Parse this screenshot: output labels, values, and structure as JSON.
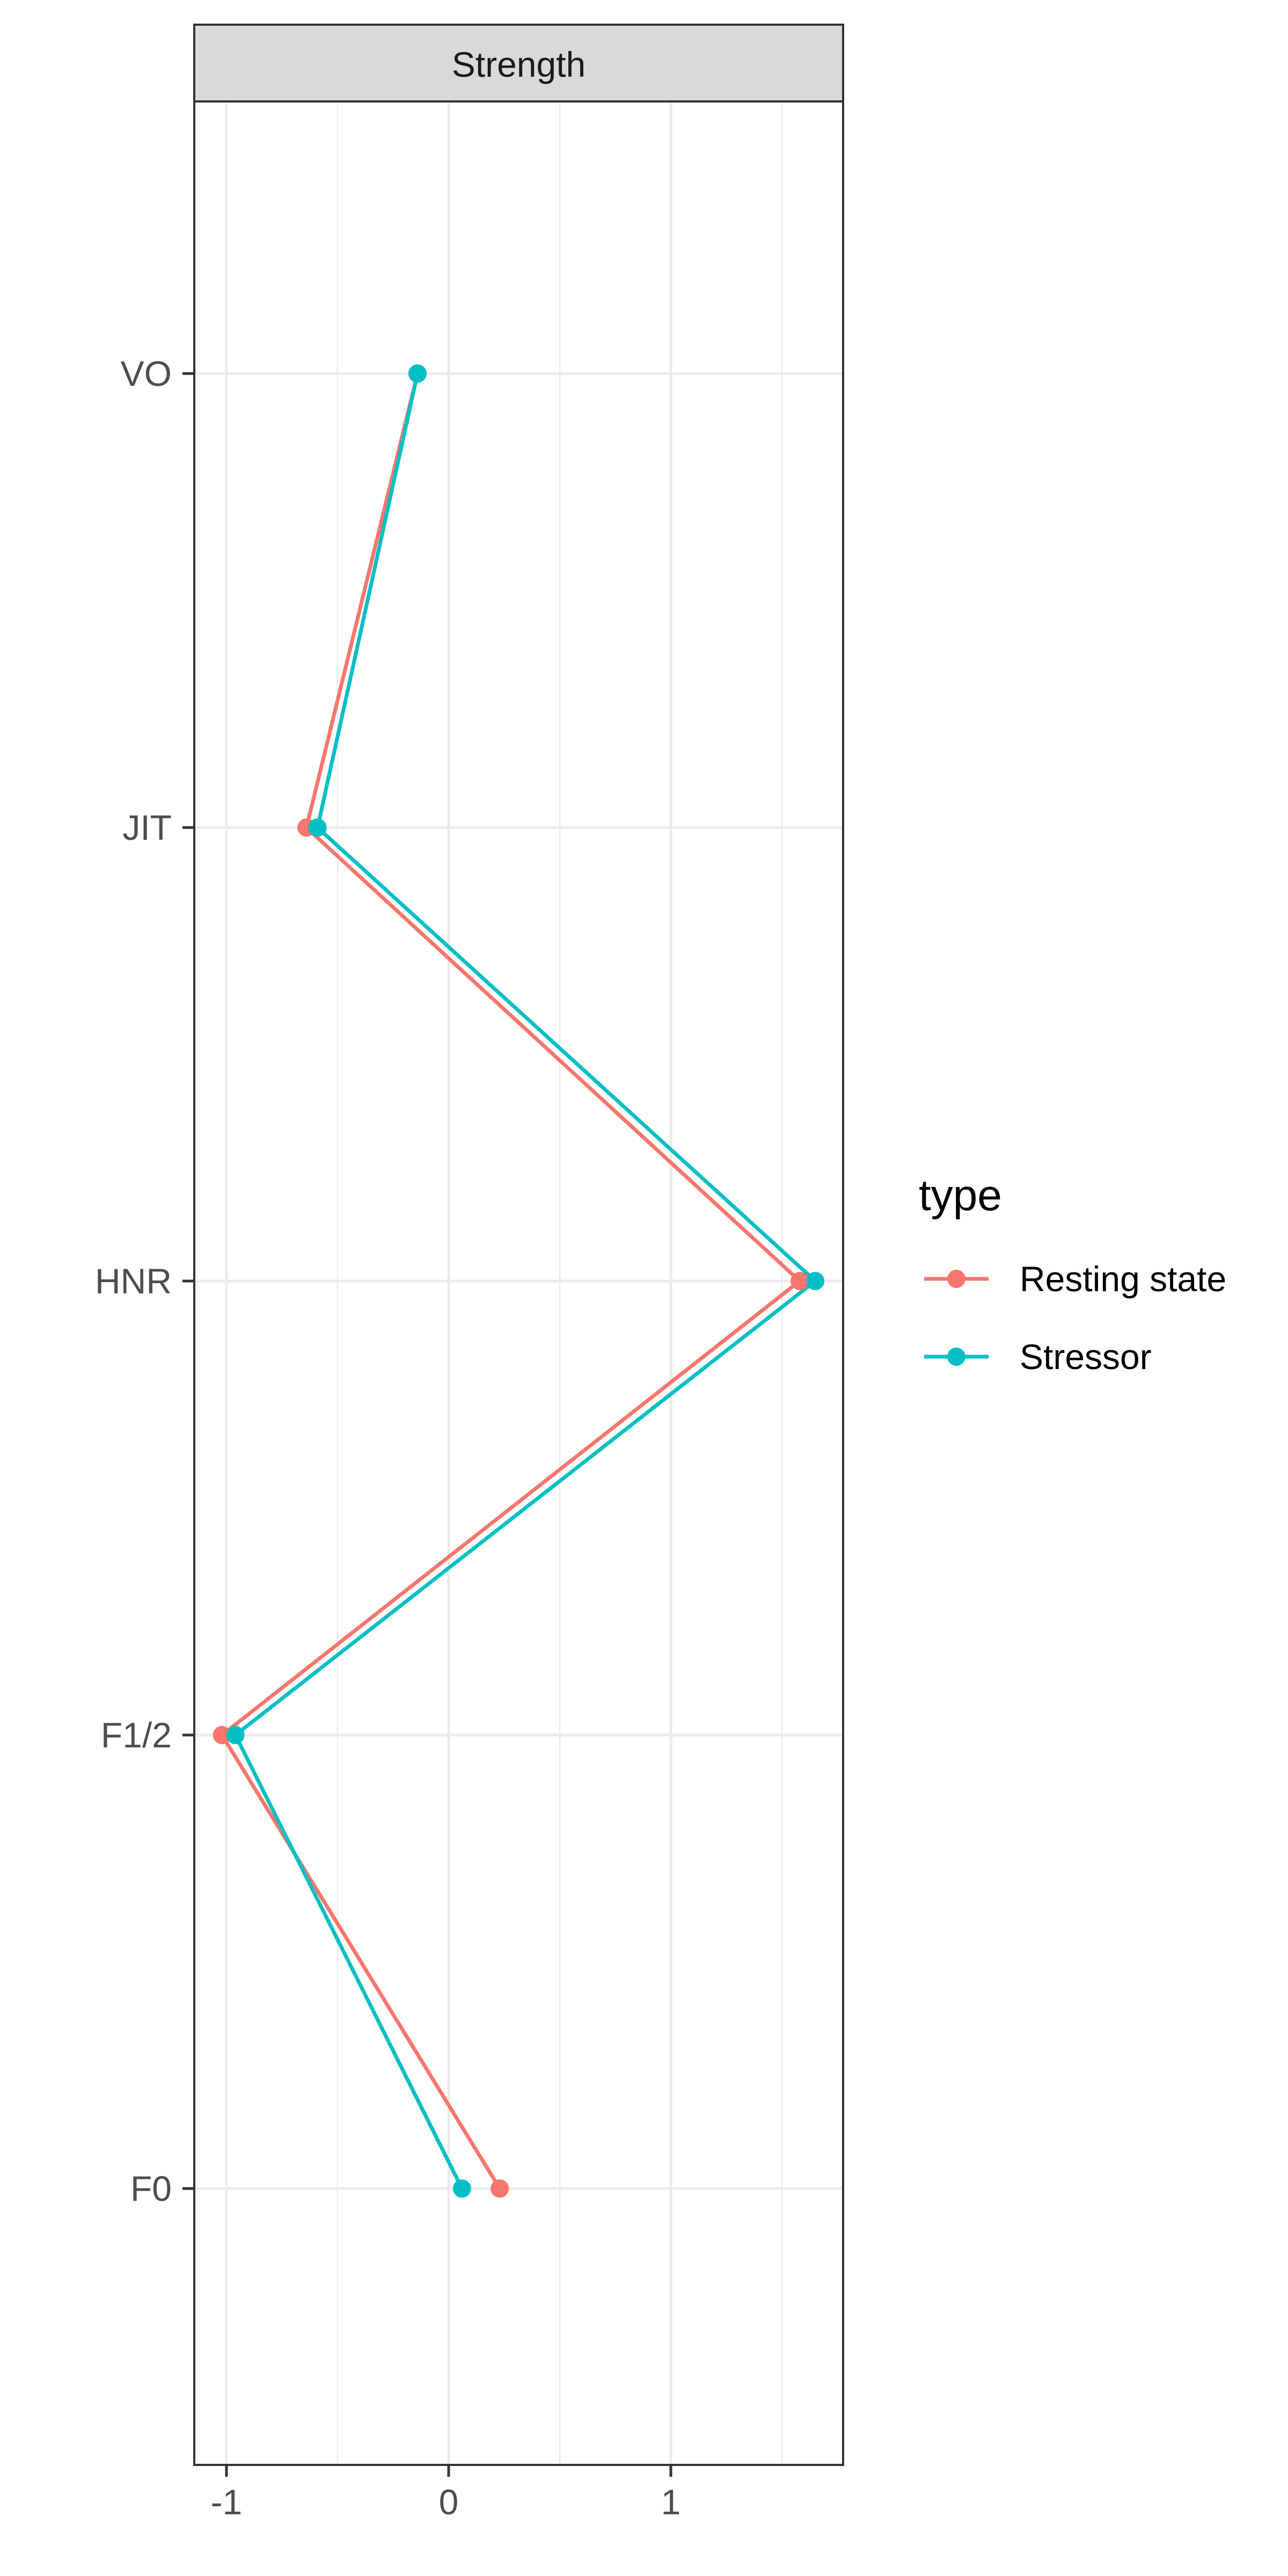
{
  "chart_data": {
    "type": "line",
    "facet_title": "Strength",
    "categories": [
      "VO",
      "JIT",
      "HNR",
      "F1/2",
      "F0"
    ],
    "x_axis": {
      "ticks": [
        -1,
        0,
        1
      ],
      "tick_labels": [
        "-1",
        "0",
        "1"
      ],
      "xlim": [
        -1.15,
        1.78
      ]
    },
    "grid": true,
    "legend": {
      "title": "type",
      "position": "right"
    },
    "series": [
      {
        "name": "Resting state",
        "color": "#F8766D",
        "values": [
          -0.14,
          -0.64,
          1.58,
          -1.02,
          0.23
        ]
      },
      {
        "name": "Stressor",
        "color": "#00BFC4",
        "values": [
          -0.14,
          -0.59,
          1.65,
          -0.96,
          0.06
        ]
      }
    ],
    "xlabel": "",
    "ylabel": ""
  }
}
